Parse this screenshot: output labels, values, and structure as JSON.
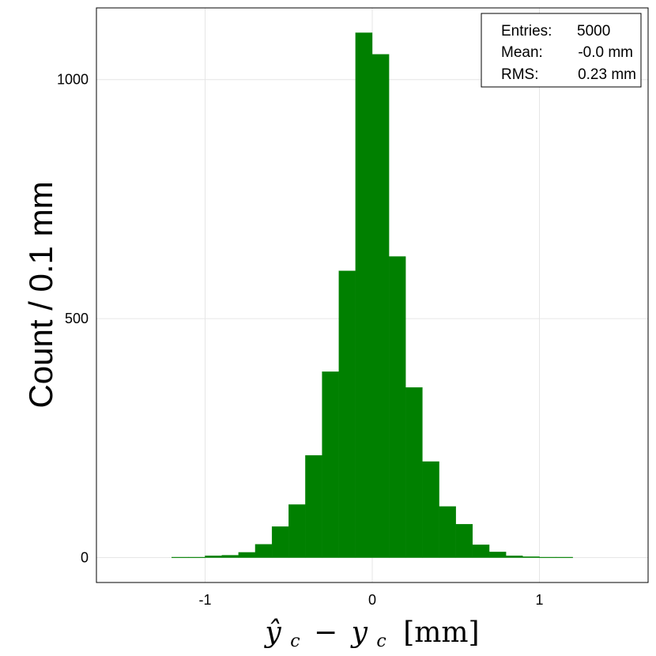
{
  "chart_data": {
    "type": "bar",
    "title": "",
    "xlabel": "ŷ_c − y_c [mm]",
    "xlabel_parts": {
      "yhat": "ŷ",
      "sub1": "c",
      "minus": "−",
      "y": "y",
      "sub2": "c",
      "unit": "[mm]"
    },
    "ylabel": "Count / 0.1 mm",
    "xlim": [
      -1.65,
      1.65
    ],
    "ylim": [
      -52,
      1150
    ],
    "xticks": [
      {
        "value": -1,
        "label": "-1"
      },
      {
        "value": 0,
        "label": "0"
      },
      {
        "value": 1,
        "label": "1"
      }
    ],
    "yticks": [
      {
        "value": 0,
        "label": "0"
      },
      {
        "value": 500,
        "label": "500"
      },
      {
        "value": 1000,
        "label": "1000"
      }
    ],
    "grid": true,
    "bar_color": "#008000",
    "bin_width": 0.1,
    "bins": [
      {
        "x0": -1.2,
        "count": 1
      },
      {
        "x0": -1.1,
        "count": 1
      },
      {
        "x0": -1.0,
        "count": 4
      },
      {
        "x0": -0.9,
        "count": 5
      },
      {
        "x0": -0.8,
        "count": 11
      },
      {
        "x0": -0.7,
        "count": 28
      },
      {
        "x0": -0.6,
        "count": 65
      },
      {
        "x0": -0.5,
        "count": 111
      },
      {
        "x0": -0.4,
        "count": 214
      },
      {
        "x0": -0.3,
        "count": 389
      },
      {
        "x0": -0.2,
        "count": 600
      },
      {
        "x0": -0.1,
        "count": 1098
      },
      {
        "x0": 0.0,
        "count": 1053
      },
      {
        "x0": 0.1,
        "count": 630
      },
      {
        "x0": 0.2,
        "count": 356
      },
      {
        "x0": 0.3,
        "count": 201
      },
      {
        "x0": 0.4,
        "count": 107
      },
      {
        "x0": 0.5,
        "count": 70
      },
      {
        "x0": 0.6,
        "count": 27
      },
      {
        "x0": 0.7,
        "count": 12
      },
      {
        "x0": 0.8,
        "count": 4
      },
      {
        "x0": 0.9,
        "count": 2
      },
      {
        "x0": 1.0,
        "count": 1
      },
      {
        "x0": 1.1,
        "count": 1
      }
    ],
    "legend": {
      "placement": "top-right",
      "lines": [
        {
          "label": "Entries:",
          "value": "5000"
        },
        {
          "label": "Mean:",
          "value": "-0.0 mm"
        },
        {
          "label": "RMS:",
          "value": "0.23 mm"
        }
      ]
    }
  }
}
